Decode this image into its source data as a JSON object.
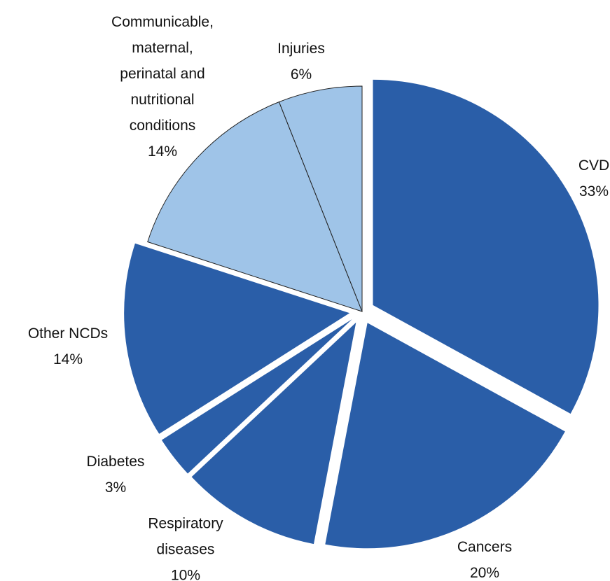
{
  "chart_data": {
    "type": "pie",
    "categories": [
      "CVD",
      "Cancers",
      "Respiratory diseases",
      "Diabetes",
      "Other NCDs",
      "Communicable, maternal, perinatal and nutritional conditions",
      "Injuries"
    ],
    "values": [
      33,
      20,
      10,
      3,
      14,
      14,
      6
    ],
    "value_labels": [
      "33%",
      "20%",
      "10%",
      "3%",
      "14%",
      "14%",
      "6%"
    ],
    "colors": [
      "#2a5ea8",
      "#2a5ea8",
      "#2a5ea8",
      "#2a5ea8",
      "#2a5ea8",
      "#9fc4e8",
      "#9fc4e8"
    ]
  }
}
